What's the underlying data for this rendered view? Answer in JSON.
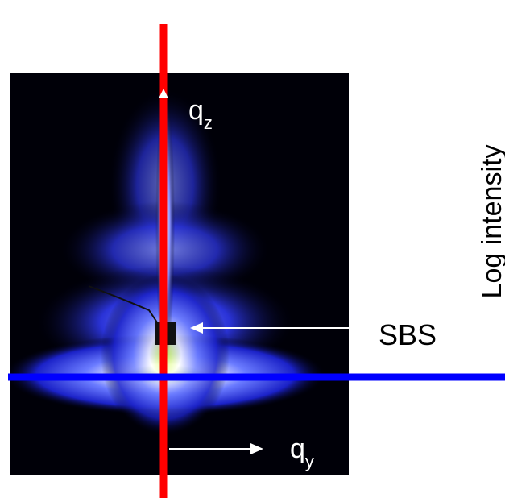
{
  "labels": {
    "qz": {
      "base": "q",
      "sub": "z"
    },
    "qy": {
      "base": "q",
      "sub": "y"
    },
    "sbs": "SBS",
    "colorbar": "Log intensity"
  }
}
